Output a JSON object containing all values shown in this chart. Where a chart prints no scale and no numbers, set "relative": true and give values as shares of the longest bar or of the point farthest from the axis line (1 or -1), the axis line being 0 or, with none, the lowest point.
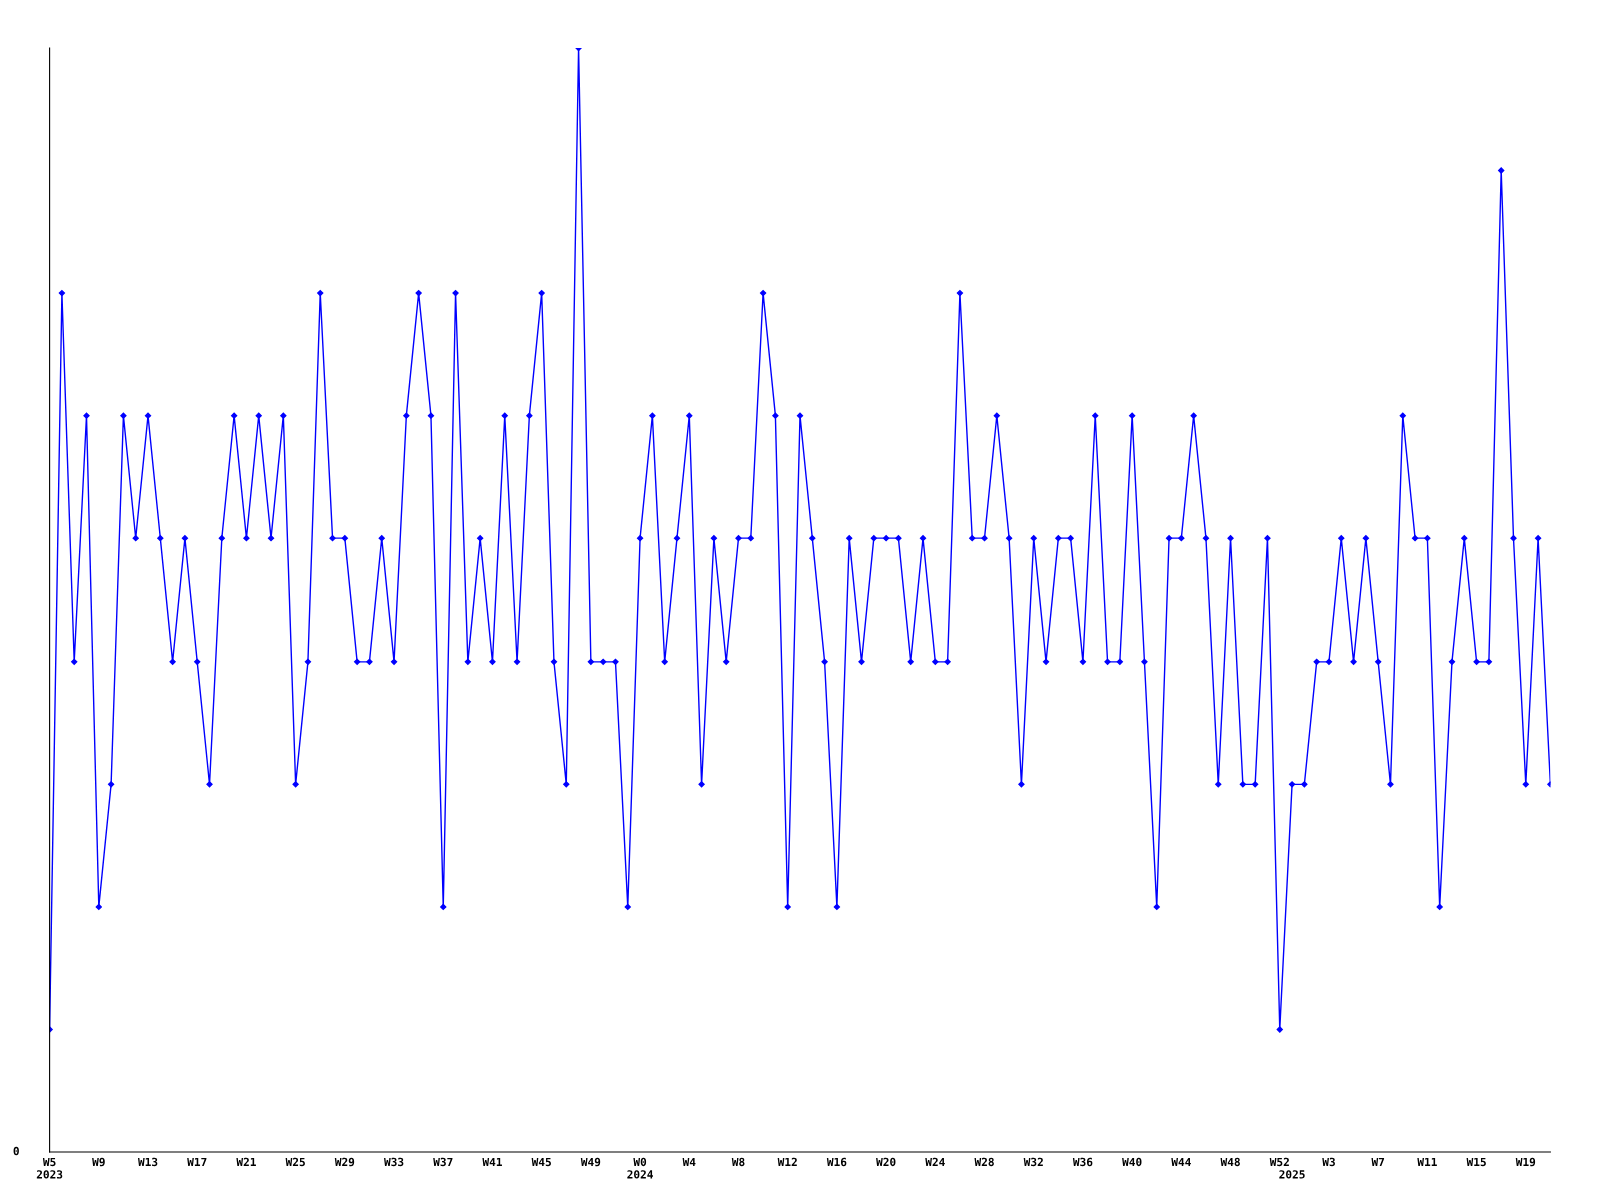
{
  "chart_data": {
    "type": "line",
    "relative": true,
    "marker": "diamond",
    "line_style": "solid",
    "grid": false,
    "legend": false,
    "annotations": [
      "0"
    ],
    "categories": [
      "W5\n2023",
      null,
      null,
      null,
      "W9",
      null,
      null,
      null,
      "W13",
      null,
      null,
      null,
      "W17",
      null,
      null,
      null,
      "W21",
      null,
      null,
      null,
      "W25",
      null,
      null,
      null,
      "W29",
      null,
      null,
      null,
      "W33",
      null,
      null,
      null,
      "W37",
      null,
      null,
      null,
      "W41",
      null,
      null,
      null,
      "W45",
      null,
      null,
      null,
      "W49",
      null,
      null,
      null,
      "W0\n2024",
      null,
      null,
      null,
      "W4",
      null,
      null,
      null,
      "W8",
      null,
      null,
      null,
      "W12",
      null,
      null,
      null,
      "W16",
      null,
      null,
      null,
      "W20",
      null,
      null,
      null,
      "W24",
      null,
      null,
      null,
      "W28",
      null,
      null,
      null,
      "W32",
      null,
      null,
      null,
      "W36",
      null,
      null,
      null,
      "W40",
      null,
      null,
      null,
      "W44",
      null,
      null,
      null,
      "W48",
      null,
      null,
      null,
      "W52",
      "\n2025",
      null,
      null,
      "W3",
      null,
      null,
      null,
      "W7",
      null,
      null,
      null,
      "W11",
      null,
      null,
      null,
      "W15",
      null,
      null,
      null,
      "W19",
      null,
      null
    ],
    "series": [
      {
        "color": "#0000ff",
        "values": [
          0.111,
          0.778,
          0.444,
          0.667,
          0.222,
          0.333,
          0.667,
          0.556,
          0.667,
          0.556,
          0.444,
          0.556,
          0.444,
          0.333,
          0.556,
          0.667,
          0.556,
          0.667,
          0.556,
          0.667,
          0.333,
          0.444,
          0.778,
          0.556,
          0.556,
          0.444,
          0.444,
          0.556,
          0.444,
          0.667,
          0.778,
          0.667,
          0.222,
          0.778,
          0.444,
          0.556,
          0.444,
          0.667,
          0.444,
          0.667,
          0.778,
          0.444,
          0.333,
          1,
          0.444,
          0.444,
          0.444,
          0.222,
          0.556,
          0.667,
          0.444,
          0.556,
          0.667,
          0.333,
          0.556,
          0.444,
          0.556,
          0.556,
          0.778,
          0.667,
          0.222,
          0.667,
          0.556,
          0.444,
          0.222,
          0.556,
          0.444,
          0.556,
          0.556,
          0.556,
          0.444,
          0.556,
          0.444,
          0.444,
          0.778,
          0.556,
          0.556,
          0.667,
          0.556,
          0.333,
          0.556,
          0.444,
          0.556,
          0.556,
          0.444,
          0.667,
          0.444,
          0.444,
          0.667,
          0.444,
          0.222,
          0.556,
          0.556,
          0.667,
          0.556,
          0.333,
          0.556,
          0.333,
          0.333,
          0.556,
          0.111,
          0.333,
          0.333,
          0.444,
          0.444,
          0.556,
          0.444,
          0.556,
          0.444,
          0.333,
          0.667,
          0.556,
          0.556,
          0.222,
          0.444,
          0.556,
          0.444,
          0.444,
          0.889,
          0.556,
          0.333,
          0.556,
          0.333
        ]
      }
    ]
  }
}
